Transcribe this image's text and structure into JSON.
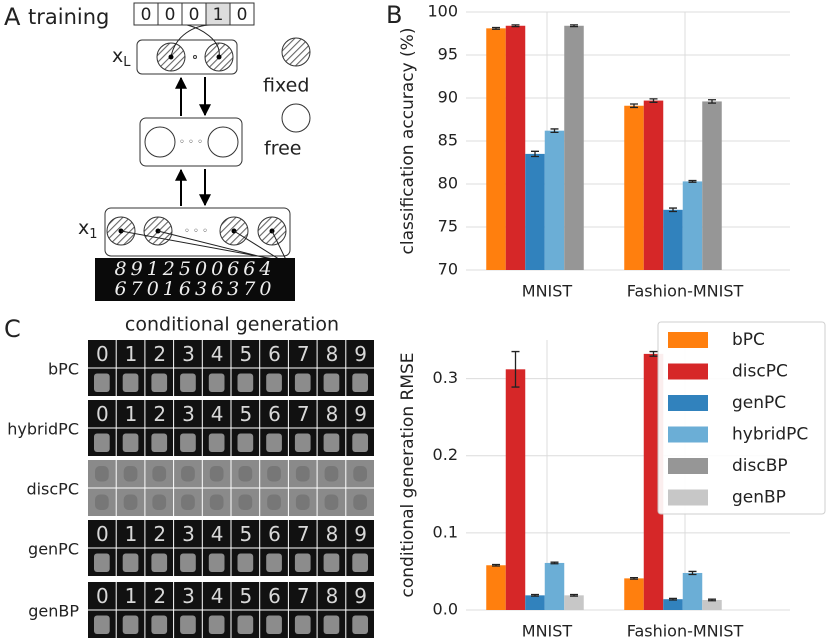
{
  "panel_a": {
    "letter": "A",
    "title": "training",
    "label_digits": [
      "0",
      "0",
      "0",
      "1",
      "0"
    ],
    "top_layer": "x",
    "top_layer_sub": "L",
    "bottom_layer": "x",
    "bottom_layer_sub": "1",
    "legend_fixed": "fixed",
    "legend_free": "free",
    "sample_digits": [
      "8912500664",
      "6701636370"
    ]
  },
  "panel_c_images": {
    "letter": "C",
    "title": "conditional generation",
    "rows": [
      "bPC",
      "hybridPC",
      "discPC",
      "genPC",
      "genBP"
    ],
    "digits": [
      "0",
      "1",
      "2",
      "3",
      "4",
      "5",
      "6",
      "7",
      "8",
      "9"
    ]
  },
  "chart_data": [
    {
      "type": "bar",
      "panel_label": "B",
      "y_label": "classification accuracy (%)",
      "categories": [
        "MNIST",
        "Fashion-MNIST"
      ],
      "ylim": [
        70,
        100
      ],
      "yticks": [
        70,
        75,
        80,
        85,
        90,
        95,
        100
      ],
      "grid": true,
      "series": [
        {
          "name": "bPC",
          "color": "#ff7f0e",
          "values": [
            98.1,
            89.1
          ],
          "errors": [
            0.1,
            0.2
          ]
        },
        {
          "name": "discPC",
          "color": "#d62728",
          "values": [
            98.4,
            89.7
          ],
          "errors": [
            0.1,
            0.2
          ]
        },
        {
          "name": "genPC",
          "color": "#3182bd",
          "values": [
            83.5,
            77.0
          ],
          "errors": [
            0.3,
            0.2
          ]
        },
        {
          "name": "hybridPC",
          "color": "#6baed6",
          "values": [
            86.2,
            80.3
          ],
          "errors": [
            0.2,
            0.1
          ]
        },
        {
          "name": "discBP",
          "color": "#969696",
          "values": [
            98.4,
            89.6
          ],
          "errors": [
            0.1,
            0.2
          ]
        }
      ]
    },
    {
      "type": "bar",
      "y_label": "conditional generation RMSE",
      "categories": [
        "MNIST",
        "Fashion-MNIST"
      ],
      "ylim": [
        0,
        0.35
      ],
      "yticks": [
        {
          "value": 0,
          "label": "0.0"
        },
        0.1,
        0.2,
        0.3
      ],
      "grid": true,
      "legend": "upper right",
      "series": [
        {
          "name": "bPC",
          "color": "#ff7f0e",
          "values": [
            0.058,
            0.041
          ],
          "errors": [
            0.001,
            0.001
          ]
        },
        {
          "name": "discPC",
          "color": "#d62728",
          "values": [
            0.312,
            0.332
          ],
          "errors": [
            0.023,
            0.003
          ]
        },
        {
          "name": "genPC",
          "color": "#3182bd",
          "values": [
            0.019,
            0.014
          ],
          "errors": [
            0.001,
            0.001
          ]
        },
        {
          "name": "hybridPC",
          "color": "#6baed6",
          "values": [
            0.061,
            0.048
          ],
          "errors": [
            0.001,
            0.002
          ]
        },
        {
          "name": "discBP",
          "color": "#969696",
          "values": [
            null,
            null
          ],
          "errors": [
            null,
            null
          ]
        },
        {
          "name": "genBP",
          "color": "#c7c7c7",
          "values": [
            0.019,
            0.013
          ],
          "errors": [
            0.001,
            0.001
          ]
        }
      ]
    }
  ]
}
